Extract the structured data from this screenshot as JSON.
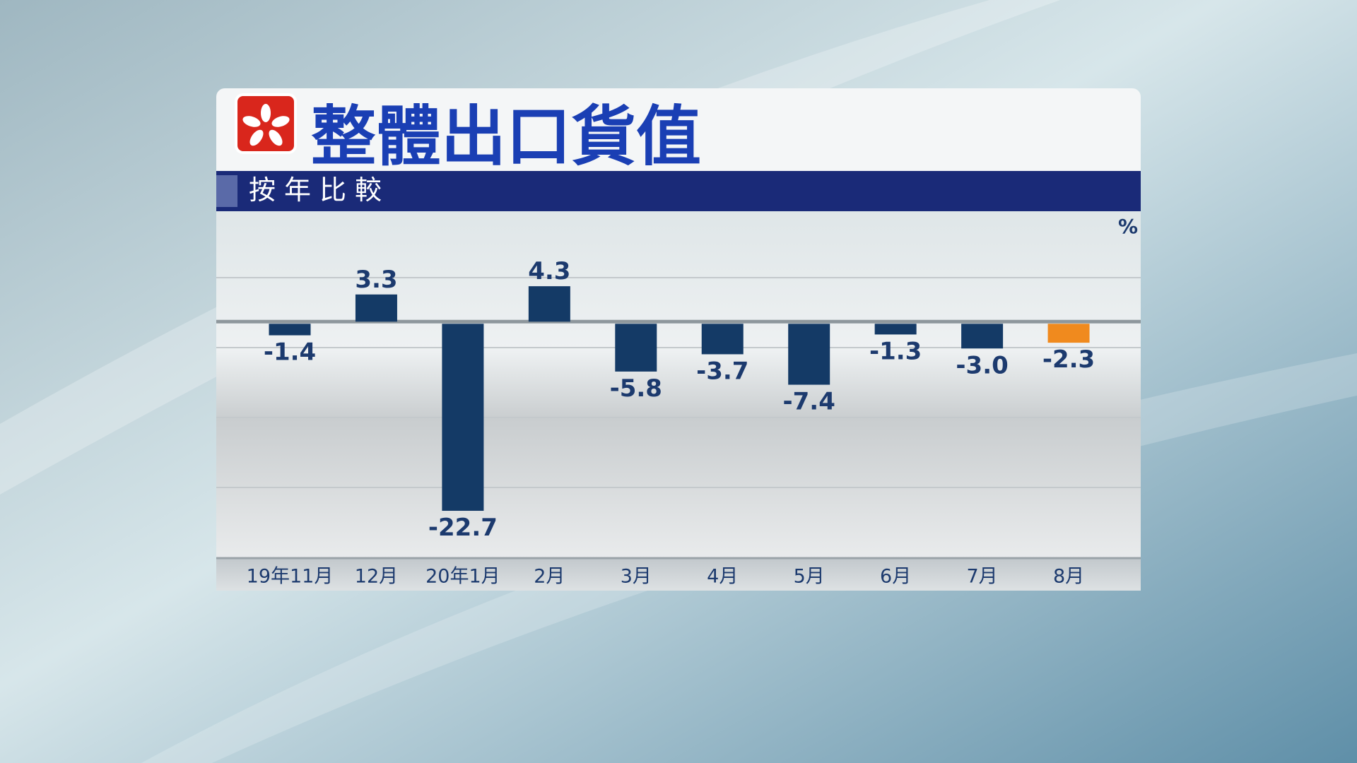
{
  "chart_data": {
    "type": "bar",
    "title": "整體出口貨值",
    "subtitle": "按年比較",
    "unit": "%",
    "categories": [
      "19年11月",
      "12月",
      "20年1月",
      "2月",
      "3月",
      "4月",
      "5月",
      "6月",
      "7月",
      "8月"
    ],
    "values": [
      -1.4,
      3.3,
      -22.7,
      4.3,
      -5.8,
      -3.7,
      -7.4,
      -1.3,
      -3.0,
      -2.3
    ],
    "value_labels": [
      "-1.4",
      "3.3",
      "-22.7",
      "4.3",
      "-5.8",
      "-3.7",
      "-7.4",
      "-1.3",
      "-3.0",
      "-2.3"
    ],
    "colors": [
      "#143a66",
      "#143a66",
      "#143a66",
      "#143a66",
      "#143a66",
      "#143a66",
      "#143a66",
      "#143a66",
      "#143a66",
      "#f08a1e"
    ],
    "ylim": [
      -28.7,
      13.4
    ]
  }
}
